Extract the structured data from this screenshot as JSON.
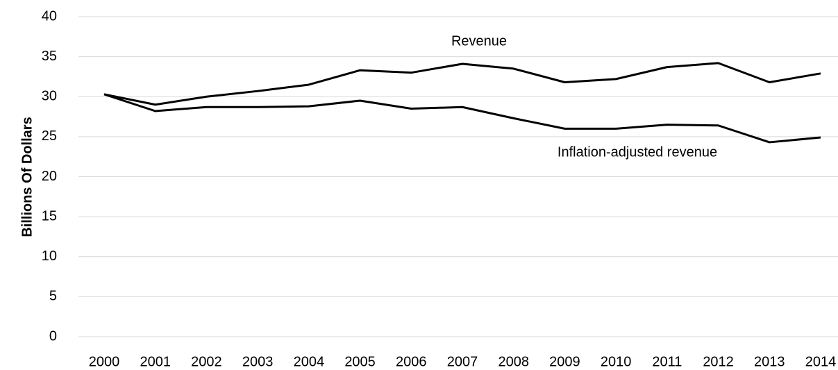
{
  "chart_data": {
    "type": "line",
    "y_label": "Billions Of Dollars",
    "categories": [
      "2000",
      "2001",
      "2002",
      "2003",
      "2004",
      "2005",
      "2006",
      "2007",
      "2008",
      "2009",
      "2010",
      "2011",
      "2012",
      "2013",
      "2014"
    ],
    "series": [
      {
        "name": "Revenue",
        "color": "#000000",
        "values": [
          30.3,
          29.0,
          30.0,
          30.7,
          31.5,
          33.3,
          33.0,
          34.1,
          33.5,
          31.8,
          32.2,
          33.7,
          34.2,
          31.8,
          32.9
        ]
      },
      {
        "name": "Inflation-adjusted revenue",
        "color": "#000000",
        "values": [
          30.3,
          28.2,
          28.7,
          28.7,
          28.8,
          29.5,
          28.5,
          28.7,
          27.3,
          26.0,
          26.0,
          26.5,
          26.4,
          24.3,
          24.9
        ]
      }
    ],
    "ylim": [
      0,
      40
    ],
    "yticks": [
      0,
      5,
      10,
      15,
      20,
      25,
      30,
      35,
      40
    ],
    "grid": true
  }
}
